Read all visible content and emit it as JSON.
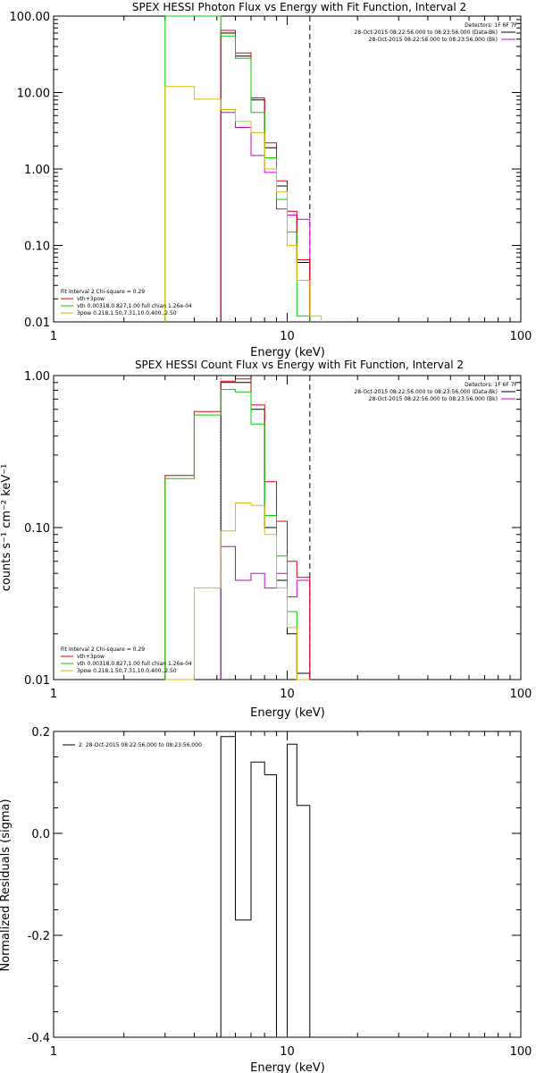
{
  "chart_data": [
    {
      "type": "line",
      "title": "SPEX HESSI Photon Flux vs Energy with Fit Function, Interval 2",
      "xlabel": "Energy (keV)",
      "ylabel": "",
      "xscale": "log",
      "yscale": "log",
      "xlim": [
        1,
        100
      ],
      "ylim": [
        0.01,
        100
      ],
      "xticks": [
        "1",
        "10",
        "100"
      ],
      "yticks": [
        {
          "value": 0.01,
          "label": "0.01"
        },
        {
          "value": 0.1,
          "label": "0.10"
        },
        {
          "value": 1,
          "label": "1.00"
        },
        {
          "value": 10,
          "label": "10.00"
        },
        {
          "value": 100,
          "label": "100.00"
        }
      ],
      "vlines": [
        {
          "x": 5.2,
          "color": "#cc00cc",
          "style": "dotted"
        },
        {
          "x": 12.5,
          "color": "#000000",
          "style": "dashed"
        }
      ],
      "info": {
        "detectors": "Detectors: 1F 6F 7F",
        "lines": [
          {
            "text": "28-Oct-2015 08:22:56.000 to 08:23:56.000 (Data-Bk)",
            "color": "#000000"
          },
          {
            "text": "28-Oct-2015 08:22:56.000 to 08:23:56.000 (Bk)",
            "color": "#cc00cc"
          }
        ]
      },
      "legend": {
        "placement": "bottom-left",
        "header": "Fit Interval 2   Chi-square = 0.29",
        "entries": [
          {
            "text": "vth+3pow",
            "color": "#dd0000"
          },
          {
            "text": "vth 0.00318,0.827,1.00   full chian 1.26e-04",
            "color": "#00cc00"
          },
          {
            "text": "3pow 0.218,1.50,7.31,10.0,400.,2.50",
            "color": "#ddbb00"
          }
        ]
      },
      "series": [
        {
          "name": "Data-Bk",
          "color": "#000000",
          "edges": [
            5.2,
            6,
            7,
            8,
            9,
            10,
            11,
            12.5
          ],
          "values": [
            60,
            30,
            8,
            1.9,
            0.6,
            0.25,
            0.06
          ]
        },
        {
          "name": "Bk",
          "color": "#cc00cc",
          "edges": [
            5.2,
            6,
            7,
            8,
            9,
            10,
            11,
            12.5
          ],
          "values": [
            5.5,
            3.5,
            1.5,
            0.9,
            0.3,
            0.25,
            0.22
          ]
        },
        {
          "name": "vth+3pow",
          "color": "#dd0000",
          "edges": [
            5.2,
            6,
            7,
            8,
            9,
            10,
            11,
            12.5
          ],
          "values": [
            65,
            33,
            8.5,
            2.2,
            0.7,
            0.28,
            0.065
          ]
        },
        {
          "name": "vth",
          "color": "#00cc00",
          "edges": [
            3,
            5.2,
            6,
            7,
            8,
            9,
            10,
            11,
            12.5
          ],
          "values": [
            100,
            55,
            28,
            5.5,
            1.4,
            0.4,
            0.15,
            0.012
          ]
        },
        {
          "name": "3pow",
          "color": "#ddbb00",
          "edges": [
            3,
            4,
            5.2,
            6,
            7,
            8,
            9,
            10,
            11,
            12.5,
            14
          ],
          "values": [
            12,
            8.2,
            6,
            4.2,
            3,
            1,
            0.5,
            0.1,
            0.035,
            0.012
          ]
        }
      ]
    },
    {
      "type": "line",
      "title": "SPEX HESSI Count Flux vs Energy with Fit Function, Interval 2",
      "xlabel": "Energy (keV)",
      "ylabel": "counts s⁻¹ cm⁻² keV⁻¹",
      "xscale": "log",
      "yscale": "log",
      "xlim": [
        1,
        100
      ],
      "ylim": [
        0.01,
        1
      ],
      "xticks": [
        "1",
        "10",
        "100"
      ],
      "yticks": [
        {
          "value": 0.01,
          "label": "0.01"
        },
        {
          "value": 0.1,
          "label": "0.10"
        },
        {
          "value": 1,
          "label": "1.00"
        }
      ],
      "vlines": [
        {
          "x": 5.2,
          "color": "#cc00cc",
          "style": "dotted"
        },
        {
          "x": 12.5,
          "color": "#000000",
          "style": "dashed"
        }
      ],
      "info": {
        "detectors": "Detectors: 1F 6F 7F",
        "lines": [
          {
            "text": "28-Oct-2015 08:22:56.000 to 08:23:56.000 (Data-Bk)",
            "color": "#000000"
          },
          {
            "text": "28-Oct-2015 08:22:56.000 to 08:23:56.000 (Bk)",
            "color": "#cc00cc"
          }
        ]
      },
      "legend": {
        "placement": "bottom-left",
        "header": "Fit Interval 2   Chi-square = 0.29",
        "entries": [
          {
            "text": "vth+3pow",
            "color": "#dd0000"
          },
          {
            "text": "vth 0.00318,0.827,1.00   full chian 1.26e-04",
            "color": "#00cc00"
          },
          {
            "text": "3pow 0.218,1.50,7.31,10.0,400.,2.50",
            "color": "#ddbb00"
          }
        ]
      },
      "series": [
        {
          "name": "Data-Bk",
          "color": "#000000",
          "edges": [
            5.2,
            6,
            7,
            8,
            9,
            10,
            11,
            12.5
          ],
          "values": [
            0.9,
            0.9,
            0.6,
            0.1,
            0.045,
            0.02,
            0.011
          ]
        },
        {
          "name": "Bk",
          "color": "#cc00cc",
          "edges": [
            5.2,
            6,
            7,
            8,
            9,
            10,
            11,
            12.5
          ],
          "values": [
            0.075,
            0.045,
            0.05,
            0.04,
            0.05,
            0.035,
            0.045
          ]
        },
        {
          "name": "vth+3pow",
          "color": "#dd0000",
          "edges": [
            3,
            4,
            5.2,
            6,
            7,
            8,
            9,
            10,
            11,
            12.5
          ],
          "values": [
            0.22,
            0.58,
            0.92,
            0.95,
            0.64,
            0.2,
            0.11,
            0.06,
            0.047
          ]
        },
        {
          "name": "vth",
          "color": "#00cc00",
          "edges": [
            3,
            4,
            5.2,
            6,
            7,
            8,
            9,
            10,
            11,
            12.5
          ],
          "values": [
            0.21,
            0.55,
            0.81,
            0.78,
            0.48,
            0.12,
            0.065,
            0.028,
            0.01
          ]
        },
        {
          "name": "3pow",
          "color": "#ddbb00",
          "edges": [
            3,
            4,
            5.2,
            6,
            7,
            8,
            9,
            10,
            11,
            12.5
          ],
          "values": [
            0.01,
            0.04,
            0.095,
            0.145,
            0.14,
            0.09,
            0.04,
            0.022,
            0.01
          ]
        }
      ]
    },
    {
      "type": "line",
      "title": "",
      "xlabel": "Energy (keV)",
      "ylabel": "Normalized Residuals (sigma)",
      "xscale": "log",
      "yscale": "linear",
      "xlim": [
        1,
        100
      ],
      "ylim": [
        -0.4,
        0.2
      ],
      "xticks": [
        "1",
        "10",
        "100"
      ],
      "yticks": [
        {
          "value": -0.4,
          "label": "-0.4"
        },
        {
          "value": -0.2,
          "label": "-0.2"
        },
        {
          "value": 0.0,
          "label": "0.0"
        },
        {
          "value": 0.2,
          "label": "0.2"
        }
      ],
      "legend": {
        "placement": "top-left",
        "entries": [
          {
            "text": "2: 28-Oct-2015 08:22:56.000 to 08:23:56.000",
            "color": "#000000"
          }
        ]
      },
      "series": [
        {
          "name": "",
          "color": "#000000",
          "edges": [
            5.2,
            6,
            7,
            8,
            9,
            10,
            11,
            12.5
          ],
          "values": [
            0.19,
            -0.17,
            0.14,
            0.115,
            -0.4,
            0.175,
            0.055
          ]
        }
      ]
    }
  ]
}
